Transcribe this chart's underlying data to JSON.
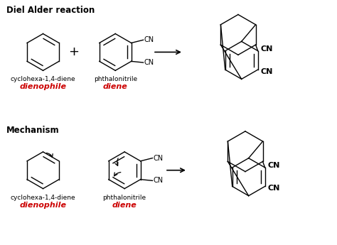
{
  "title_top": "Diel Alder reaction",
  "title_bottom": "Mechanism",
  "label_cyclohexa": "cyclohexa-1,4-diene",
  "label_phthalonitrile": "phthalonitrile",
  "label_dienophile": "dienophile",
  "label_diene": "diene",
  "label_CN": "CN",
  "background_color": "#ffffff",
  "text_color_black": "#000000",
  "text_color_red": "#cc0000",
  "title_fontsize": 8.5,
  "label_fontsize": 6.5,
  "cn_fontsize": 7,
  "bold_fontsize": 8.5,
  "red_fontsize": 8
}
